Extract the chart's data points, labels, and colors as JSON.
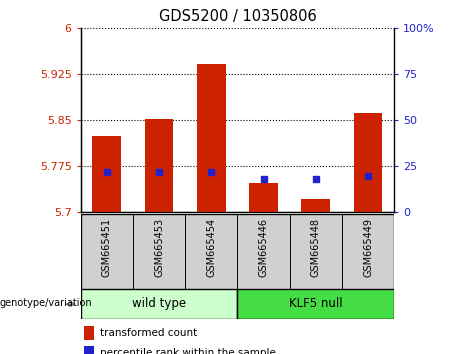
{
  "title": "GDS5200 / 10350806",
  "samples": [
    "GSM665451",
    "GSM665453",
    "GSM665454",
    "GSM665446",
    "GSM665448",
    "GSM665449"
  ],
  "transformed_counts": [
    5.825,
    5.852,
    5.942,
    5.748,
    5.722,
    5.862
  ],
  "percentile_ranks": [
    22,
    22,
    22,
    18,
    18,
    20
  ],
  "y_min": 5.7,
  "y_max": 6.0,
  "y_ticks": [
    5.7,
    5.775,
    5.85,
    5.925,
    6.0
  ],
  "y_tick_labels": [
    "5.7",
    "5.775",
    "5.85",
    "5.925",
    "6"
  ],
  "right_y_ticks": [
    0,
    25,
    50,
    75,
    100
  ],
  "right_y_tick_labels": [
    "0",
    "25",
    "50",
    "75",
    "100%"
  ],
  "bar_color": "#cc2200",
  "dot_color": "#2222cc",
  "wild_type_label": "wild type",
  "klf5_label": "KLF5 null",
  "wild_type_color": "#ccffcc",
  "klf5_color": "#44dd44",
  "group_label": "genotype/variation",
  "legend_bar_label": "transformed count",
  "legend_dot_label": "percentile rank within the sample",
  "tick_label_color_left": "#cc2200",
  "tick_label_color_right": "#2222cc",
  "sample_bg_color": "#d0d0d0",
  "bar_width": 0.55
}
